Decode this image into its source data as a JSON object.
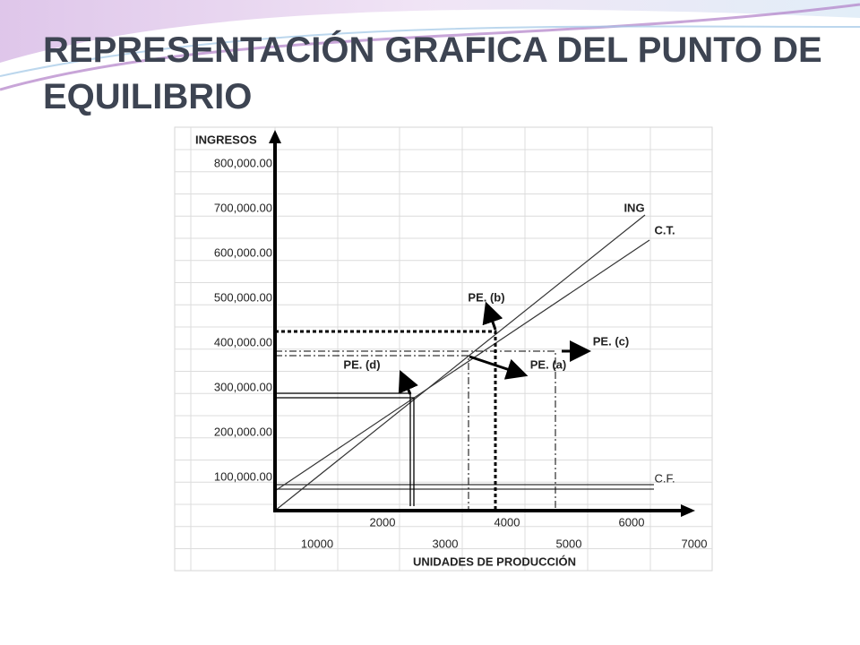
{
  "header": {
    "title": "REPRESENTACIÓN GRAFICA DEL PUNTO DE EQUILIBRIO"
  },
  "diagram": {
    "y_axis_label": "INGRESOS",
    "y_tick_labels": [
      "800,000.00",
      "700,000.00",
      "600,000.00",
      "500,000.00",
      "400,000.00",
      "300,000.00",
      "200,000.00",
      "100,000.00"
    ],
    "x_tick_labels_top": [
      "2000",
      "4000",
      "6000"
    ],
    "x_tick_labels_bottom": [
      "10000",
      "3000",
      "5000",
      "7000"
    ],
    "x_axis_label": "UNIDADES DE PRODUCCIÓN",
    "line_labels": [
      "ING",
      "C.T.",
      "C.F."
    ],
    "annotations": [
      "PE. (b)",
      "PE. (c)",
      "PE. (a)",
      "PE. (d)"
    ]
  }
}
